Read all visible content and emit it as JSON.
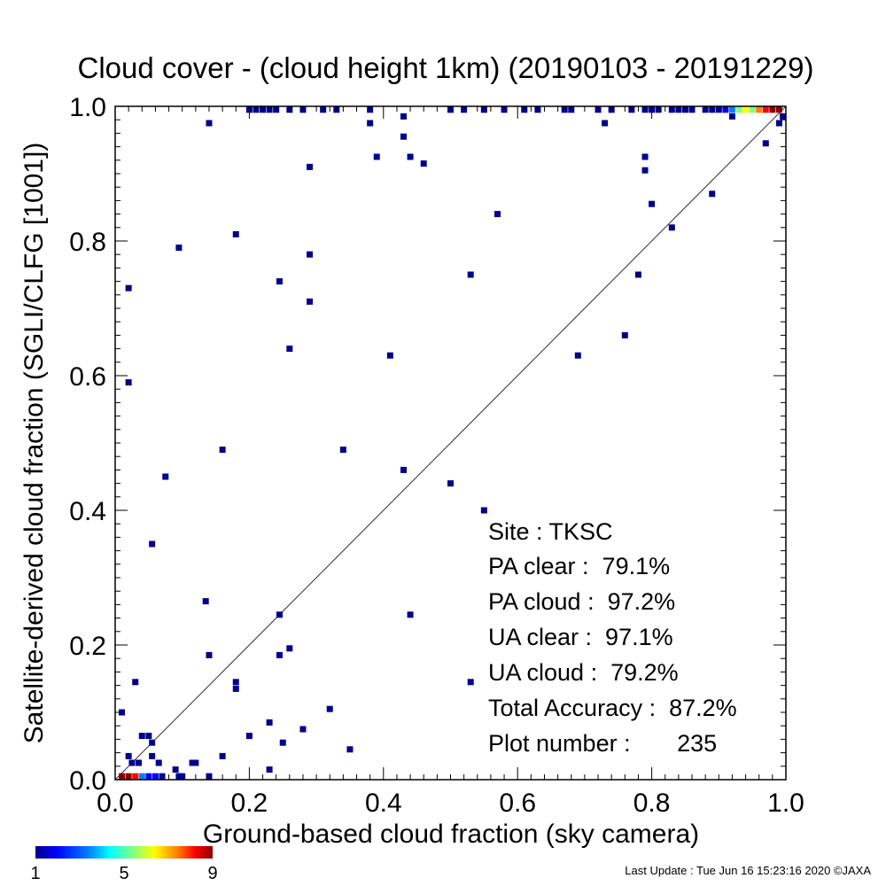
{
  "chart_data": {
    "type": "scatter",
    "title": "Cloud cover - (cloud height 1km)  (20190103 - 20191229)",
    "xlabel": "Ground-based cloud fraction (sky camera)",
    "ylabel": "Satellite-derived cloud fraction (SGLI/CLFG [1001])",
    "xlim": [
      0.0,
      1.0
    ],
    "ylim": [
      0.0,
      1.0
    ],
    "x_ticks": [
      "0.0",
      "0.2",
      "0.4",
      "0.6",
      "0.8",
      "1.0"
    ],
    "y_ticks": [
      "0.0",
      "0.2",
      "0.4",
      "0.6",
      "0.8",
      "1.0"
    ],
    "reference_line": "1:1 diagonal",
    "grid": false,
    "colorbar": {
      "min_label": "1",
      "mid_label": "5",
      "max_label": "9",
      "colors": [
        "#00008b",
        "#0000ff",
        "#0080ff",
        "#00ffff",
        "#80ff80",
        "#ffff00",
        "#ff8000",
        "#ff0000",
        "#8b0000"
      ]
    },
    "points": [
      {
        "x": 0.02,
        "y": 0.73,
        "count": 1
      },
      {
        "x": 0.02,
        "y": 0.59,
        "count": 1
      },
      {
        "x": 0.01,
        "y": 0.1,
        "count": 1
      },
      {
        "x": 0.03,
        "y": 0.145,
        "count": 1
      },
      {
        "x": 0.055,
        "y": 0.35,
        "count": 1
      },
      {
        "x": 0.075,
        "y": 0.45,
        "count": 1
      },
      {
        "x": 0.095,
        "y": 0.79,
        "count": 1
      },
      {
        "x": 0.135,
        "y": 0.265,
        "count": 1
      },
      {
        "x": 0.14,
        "y": 0.185,
        "count": 1
      },
      {
        "x": 0.14,
        "y": 0.975,
        "count": 1
      },
      {
        "x": 0.16,
        "y": 0.49,
        "count": 1
      },
      {
        "x": 0.18,
        "y": 0.81,
        "count": 1
      },
      {
        "x": 0.18,
        "y": 0.145,
        "count": 1
      },
      {
        "x": 0.18,
        "y": 0.135,
        "count": 1
      },
      {
        "x": 0.16,
        "y": 0.035,
        "count": 1
      },
      {
        "x": 0.2,
        "y": 0.065,
        "count": 1
      },
      {
        "x": 0.23,
        "y": 0.085,
        "count": 1
      },
      {
        "x": 0.23,
        "y": 0.015,
        "count": 1
      },
      {
        "x": 0.245,
        "y": 0.245,
        "count": 1
      },
      {
        "x": 0.245,
        "y": 0.185,
        "count": 1
      },
      {
        "x": 0.245,
        "y": 0.74,
        "count": 1
      },
      {
        "x": 0.25,
        "y": 0.055,
        "count": 1
      },
      {
        "x": 0.26,
        "y": 0.195,
        "count": 1
      },
      {
        "x": 0.26,
        "y": 0.64,
        "count": 1
      },
      {
        "x": 0.28,
        "y": 0.075,
        "count": 1
      },
      {
        "x": 0.29,
        "y": 0.91,
        "count": 1
      },
      {
        "x": 0.29,
        "y": 0.78,
        "count": 1
      },
      {
        "x": 0.29,
        "y": 0.71,
        "count": 1
      },
      {
        "x": 0.32,
        "y": 0.105,
        "count": 1
      },
      {
        "x": 0.34,
        "y": 0.49,
        "count": 1
      },
      {
        "x": 0.35,
        "y": 0.045,
        "count": 1
      },
      {
        "x": 0.38,
        "y": 0.975,
        "count": 1
      },
      {
        "x": 0.39,
        "y": 0.925,
        "count": 1
      },
      {
        "x": 0.41,
        "y": 0.63,
        "count": 1
      },
      {
        "x": 0.43,
        "y": 0.985,
        "count": 1
      },
      {
        "x": 0.43,
        "y": 0.955,
        "count": 1
      },
      {
        "x": 0.43,
        "y": 0.46,
        "count": 1
      },
      {
        "x": 0.44,
        "y": 0.925,
        "count": 1
      },
      {
        "x": 0.44,
        "y": 0.245,
        "count": 1
      },
      {
        "x": 0.46,
        "y": 0.915,
        "count": 1
      },
      {
        "x": 0.5,
        "y": 0.44,
        "count": 1
      },
      {
        "x": 0.53,
        "y": 0.75,
        "count": 1
      },
      {
        "x": 0.53,
        "y": 0.145,
        "count": 1
      },
      {
        "x": 0.55,
        "y": 0.4,
        "count": 1
      },
      {
        "x": 0.57,
        "y": 0.84,
        "count": 1
      },
      {
        "x": 0.69,
        "y": 0.63,
        "count": 1
      },
      {
        "x": 0.73,
        "y": 0.975,
        "count": 1
      },
      {
        "x": 0.76,
        "y": 0.66,
        "count": 1
      },
      {
        "x": 0.78,
        "y": 0.75,
        "count": 1
      },
      {
        "x": 0.79,
        "y": 0.925,
        "count": 1
      },
      {
        "x": 0.79,
        "y": 0.905,
        "count": 1
      },
      {
        "x": 0.8,
        "y": 0.855,
        "count": 1
      },
      {
        "x": 0.83,
        "y": 0.82,
        "count": 1
      },
      {
        "x": 0.89,
        "y": 0.87,
        "count": 1
      },
      {
        "x": 0.92,
        "y": 0.985,
        "count": 1
      },
      {
        "x": 0.97,
        "y": 0.945,
        "count": 1
      },
      {
        "x": 0.99,
        "y": 0.975,
        "count": 1
      },
      {
        "x": 1.0,
        "y": 0.985,
        "count": 1
      },
      {
        "x": 0.04,
        "y": 0.065,
        "count": 1
      },
      {
        "x": 0.05,
        "y": 0.065,
        "count": 1
      },
      {
        "x": 0.055,
        "y": 0.055,
        "count": 1
      },
      {
        "x": 0.055,
        "y": 0.035,
        "count": 1
      },
      {
        "x": 0.065,
        "y": 0.025,
        "count": 1
      },
      {
        "x": 0.02,
        "y": 0.035,
        "count": 1
      },
      {
        "x": 0.025,
        "y": 0.025,
        "count": 1
      },
      {
        "x": 0.035,
        "y": 0.025,
        "count": 1
      },
      {
        "x": 0.09,
        "y": 0.015,
        "count": 1
      },
      {
        "x": 0.115,
        "y": 0.025,
        "count": 1
      },
      {
        "x": 0.12,
        "y": 0.025,
        "count": 1
      },
      {
        "x": 0.095,
        "y": 0.005,
        "count": 1
      },
      {
        "x": 0.1,
        "y": 0.005,
        "count": 1
      },
      {
        "x": 0.14,
        "y": 0.005,
        "count": 1
      },
      {
        "x": 0.07,
        "y": 0.005,
        "count": 1
      },
      {
        "x": 0.06,
        "y": 0.005,
        "count": 2
      },
      {
        "x": 0.01,
        "y": 0.005,
        "count": 9
      },
      {
        "x": 0.02,
        "y": 0.005,
        "count": 9
      },
      {
        "x": 0.03,
        "y": 0.005,
        "count": 8
      },
      {
        "x": 0.04,
        "y": 0.005,
        "count": 3
      },
      {
        "x": 0.05,
        "y": 0.005,
        "count": 2
      },
      {
        "x": 0.2,
        "y": 0.995,
        "count": 1
      },
      {
        "x": 0.21,
        "y": 0.995,
        "count": 1
      },
      {
        "x": 0.22,
        "y": 0.995,
        "count": 1
      },
      {
        "x": 0.23,
        "y": 0.995,
        "count": 1
      },
      {
        "x": 0.24,
        "y": 0.995,
        "count": 1
      },
      {
        "x": 0.26,
        "y": 0.995,
        "count": 1
      },
      {
        "x": 0.28,
        "y": 0.995,
        "count": 1
      },
      {
        "x": 0.31,
        "y": 0.995,
        "count": 1
      },
      {
        "x": 0.33,
        "y": 0.995,
        "count": 1
      },
      {
        "x": 0.38,
        "y": 0.995,
        "count": 1
      },
      {
        "x": 0.5,
        "y": 0.995,
        "count": 1
      },
      {
        "x": 0.52,
        "y": 0.995,
        "count": 1
      },
      {
        "x": 0.55,
        "y": 0.995,
        "count": 1
      },
      {
        "x": 0.58,
        "y": 0.995,
        "count": 1
      },
      {
        "x": 0.61,
        "y": 0.995,
        "count": 1
      },
      {
        "x": 0.63,
        "y": 0.995,
        "count": 1
      },
      {
        "x": 0.67,
        "y": 0.995,
        "count": 1
      },
      {
        "x": 0.68,
        "y": 0.995,
        "count": 1
      },
      {
        "x": 0.72,
        "y": 0.995,
        "count": 1
      },
      {
        "x": 0.74,
        "y": 0.995,
        "count": 1
      },
      {
        "x": 0.77,
        "y": 0.995,
        "count": 1
      },
      {
        "x": 0.79,
        "y": 0.995,
        "count": 1
      },
      {
        "x": 0.8,
        "y": 0.995,
        "count": 1
      },
      {
        "x": 0.81,
        "y": 0.995,
        "count": 1
      },
      {
        "x": 0.83,
        "y": 0.995,
        "count": 1
      },
      {
        "x": 0.84,
        "y": 0.995,
        "count": 1
      },
      {
        "x": 0.85,
        "y": 0.995,
        "count": 1
      },
      {
        "x": 0.86,
        "y": 0.995,
        "count": 1
      },
      {
        "x": 0.88,
        "y": 0.995,
        "count": 1
      },
      {
        "x": 0.89,
        "y": 0.995,
        "count": 1
      },
      {
        "x": 0.9,
        "y": 0.995,
        "count": 1
      },
      {
        "x": 0.91,
        "y": 0.995,
        "count": 2
      },
      {
        "x": 0.92,
        "y": 0.995,
        "count": 3
      },
      {
        "x": 0.93,
        "y": 0.995,
        "count": 5
      },
      {
        "x": 0.94,
        "y": 0.995,
        "count": 6
      },
      {
        "x": 0.95,
        "y": 0.995,
        "count": 5
      },
      {
        "x": 0.96,
        "y": 0.995,
        "count": 7
      },
      {
        "x": 0.97,
        "y": 0.995,
        "count": 8
      },
      {
        "x": 0.98,
        "y": 0.995,
        "count": 9
      },
      {
        "x": 0.99,
        "y": 0.995,
        "count": 9
      }
    ]
  },
  "stats": {
    "site": "Site : TKSC",
    "pa_clear": "PA clear :  79.1%",
    "pa_cloud": "PA cloud :  97.2%",
    "ua_clear": "UA clear :  97.1%",
    "ua_cloud": "UA cloud :  79.2%",
    "total_accuracy": "Total Accuracy :  87.2%",
    "plot_number": "Plot number :       235"
  },
  "footer": {
    "last_update": "Last Update : Tue Jun 16 15:23:16 2020  ©JAXA"
  }
}
